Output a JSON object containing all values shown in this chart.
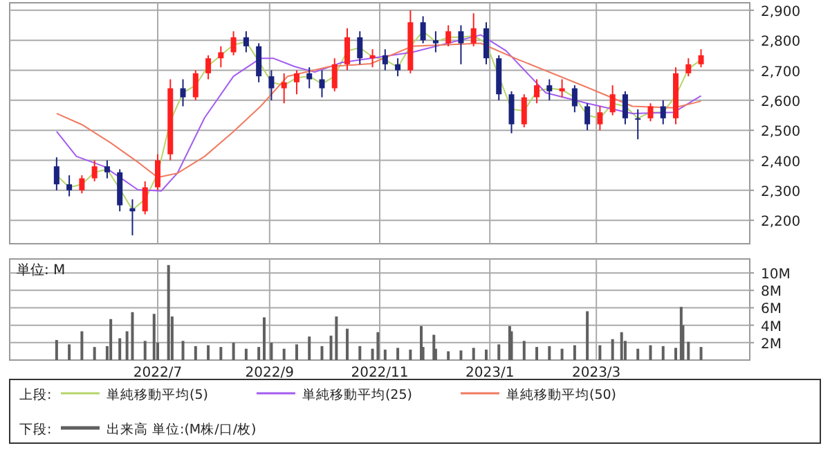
{
  "chart_data": [
    {
      "type": "candlestick",
      "legend_title": "上段:",
      "legend": "bottom",
      "grid": true,
      "tick_labels": "y",
      "xlim": [
        "2022-04-10",
        "2023-05-25"
      ],
      "ylim": [
        2122,
        2925
      ],
      "xticks": [
        {
          "value": "2022-07-01",
          "label": null
        },
        {
          "value": "2022-09-01",
          "label": null
        },
        {
          "value": "2022-11-01",
          "label": null
        },
        {
          "value": "2023-01-01",
          "label": null
        },
        {
          "value": "2023-03-01",
          "label": null
        }
      ],
      "yticks": [
        {
          "value": 2200,
          "label": "2,200"
        },
        {
          "value": 2300,
          "label": "2,300"
        },
        {
          "value": 2400,
          "label": "2,400"
        },
        {
          "value": 2500,
          "label": "2,500"
        },
        {
          "value": 2600,
          "label": "2,600"
        },
        {
          "value": 2700,
          "label": "2,700"
        },
        {
          "value": 2800,
          "label": "2,800"
        },
        {
          "value": 2900,
          "label": "2,900"
        }
      ],
      "x": [
        "2022-05-06",
        "2022-05-13",
        "2022-05-20",
        "2022-05-27",
        "2022-06-03",
        "2022-06-10",
        "2022-06-17",
        "2022-06-24",
        "2022-07-01",
        "2022-07-08",
        "2022-07-15",
        "2022-07-22",
        "2022-07-29",
        "2022-08-05",
        "2022-08-12",
        "2022-08-19",
        "2022-08-26",
        "2022-09-02",
        "2022-09-09",
        "2022-09-16",
        "2022-09-23",
        "2022-09-30",
        "2022-10-07",
        "2022-10-14",
        "2022-10-21",
        "2022-10-28",
        "2022-11-04",
        "2022-11-11",
        "2022-11-18",
        "2022-11-25",
        "2022-12-02",
        "2022-12-09",
        "2022-12-16",
        "2022-12-23",
        "2022-12-30",
        "2023-01-06",
        "2023-01-13",
        "2023-01-20",
        "2023-01-27",
        "2023-02-03",
        "2023-02-10",
        "2023-02-17",
        "2023-02-24",
        "2023-03-03",
        "2023-03-10",
        "2023-03-17",
        "2023-03-24",
        "2023-03-31",
        "2023-04-07",
        "2023-04-14",
        "2023-04-21",
        "2023-04-28"
      ],
      "ohlc": [
        [
          2380,
          2410,
          2300,
          2320
        ],
        [
          2320,
          2350,
          2280,
          2300
        ],
        [
          2300,
          2350,
          2290,
          2340
        ],
        [
          2340,
          2400,
          2330,
          2380
        ],
        [
          2380,
          2400,
          2340,
          2360
        ],
        [
          2360,
          2370,
          2230,
          2250
        ],
        [
          2240,
          2270,
          2150,
          2230
        ],
        [
          2230,
          2330,
          2220,
          2310
        ],
        [
          2310,
          2420,
          2300,
          2400
        ],
        [
          2420,
          2670,
          2400,
          2640
        ],
        [
          2640,
          2670,
          2580,
          2610
        ],
        [
          2610,
          2700,
          2600,
          2690
        ],
        [
          2690,
          2750,
          2670,
          2740
        ],
        [
          2740,
          2780,
          2710,
          2760
        ],
        [
          2760,
          2830,
          2750,
          2810
        ],
        [
          2810,
          2830,
          2760,
          2780
        ],
        [
          2780,
          2790,
          2660,
          2680
        ],
        [
          2680,
          2700,
          2600,
          2640
        ],
        [
          2640,
          2690,
          2590,
          2660
        ],
        [
          2660,
          2700,
          2620,
          2690
        ],
        [
          2690,
          2710,
          2640,
          2670
        ],
        [
          2670,
          2700,
          2610,
          2640
        ],
        [
          2640,
          2740,
          2630,
          2720
        ],
        [
          2720,
          2840,
          2700,
          2810
        ],
        [
          2810,
          2830,
          2720,
          2740
        ],
        [
          2740,
          2770,
          2710,
          2750
        ],
        [
          2750,
          2770,
          2700,
          2720
        ],
        [
          2720,
          2740,
          2680,
          2700
        ],
        [
          2700,
          2900,
          2690,
          2860
        ],
        [
          2860,
          2880,
          2790,
          2800
        ],
        [
          2800,
          2830,
          2760,
          2790
        ],
        [
          2790,
          2850,
          2780,
          2830
        ],
        [
          2830,
          2850,
          2720,
          2790
        ],
        [
          2790,
          2890,
          2780,
          2840
        ],
        [
          2840,
          2860,
          2720,
          2740
        ],
        [
          2740,
          2750,
          2600,
          2620
        ],
        [
          2620,
          2630,
          2490,
          2520
        ],
        [
          2520,
          2620,
          2510,
          2610
        ],
        [
          2610,
          2670,
          2590,
          2650
        ],
        [
          2650,
          2670,
          2600,
          2630
        ],
        [
          2630,
          2670,
          2610,
          2640
        ],
        [
          2640,
          2650,
          2560,
          2580
        ],
        [
          2580,
          2590,
          2500,
          2520
        ],
        [
          2520,
          2580,
          2500,
          2560
        ],
        [
          2560,
          2650,
          2550,
          2620
        ],
        [
          2620,
          2630,
          2520,
          2540
        ],
        [
          2540,
          2570,
          2470,
          2540
        ],
        [
          2540,
          2590,
          2530,
          2580
        ],
        [
          2580,
          2600,
          2520,
          2540
        ],
        [
          2540,
          2710,
          2520,
          2690
        ],
        [
          2690,
          2740,
          2680,
          2720
        ],
        [
          2720,
          2770,
          2710,
          2750
        ]
      ],
      "colors": [
        "#1a237e",
        "#1a237e",
        "#ff2020",
        "#ff2020",
        "#1a237e",
        "#1a237e",
        "#1a237e",
        "#ff2020",
        "#ff2020",
        "#ff2020",
        "#1a237e",
        "#ff2020",
        "#ff2020",
        "#ff2020",
        "#ff2020",
        "#1a237e",
        "#1a237e",
        "#1a237e",
        "#ff2020",
        "#ff2020",
        "#1a237e",
        "#1a237e",
        "#ff2020",
        "#ff2020",
        "#1a237e",
        "#ff2020",
        "#1a237e",
        "#1a237e",
        "#ff2020",
        "#1a237e",
        "#1a237e",
        "#ff2020",
        "#1a237e",
        "#ff2020",
        "#1a237e",
        "#1a237e",
        "#1a237e",
        "#ff2020",
        "#ff2020",
        "#1a237e",
        "#ff2020",
        "#1a237e",
        "#1a237e",
        "#ff2020",
        "#ff2020",
        "#1a237e",
        "#1a237e",
        "#ff2020",
        "#1a237e",
        "#ff2020",
        "#ff2020",
        "#ff2020"
      ],
      "series": [
        {
          "name": "単純移動平均(5)",
          "type": "line",
          "color": "#b5d66a",
          "values": [
            2350,
            2310,
            2320,
            2360,
            2370,
            2305,
            2235,
            2270,
            2355,
            2530,
            2625,
            2650,
            2715,
            2750,
            2785,
            2795,
            2730,
            2660,
            2650,
            2675,
            2680,
            2655,
            2680,
            2765,
            2775,
            2745,
            2735,
            2710,
            2780,
            2830,
            2795,
            2810,
            2810,
            2815,
            2790,
            2680,
            2570,
            2565,
            2630,
            2640,
            2635,
            2610,
            2550,
            2540,
            2590,
            2580,
            2540,
            2560,
            2560,
            2615,
            2705,
            2735
          ]
        },
        {
          "name": "単純移動平均(25)",
          "type": "line",
          "color": "#a35cf0",
          "x": [
            "2022-05-06",
            "2022-05-17",
            "2022-06-01",
            "2022-06-12",
            "2022-06-20",
            "2022-07-03",
            "2022-07-12",
            "2022-07-27",
            "2022-08-12",
            "2022-08-27",
            "2022-09-03",
            "2022-09-15",
            "2022-09-26",
            "2022-10-11",
            "2022-10-27",
            "2022-11-19",
            "2022-12-27",
            "2023-01-10",
            "2023-02-01",
            "2023-02-24",
            "2023-03-21",
            "2023-04-13",
            "2023-04-28"
          ],
          "values": [
            2496,
            2413,
            2380,
            2335,
            2302,
            2298,
            2358,
            2542,
            2680,
            2740,
            2740,
            2712,
            2694,
            2726,
            2740,
            2760,
            2818,
            2765,
            2625,
            2590,
            2556,
            2560,
            2615
          ]
        },
        {
          "name": "単純移動平均(50)",
          "type": "line",
          "color": "#f07a60",
          "x": [
            "2022-05-06",
            "2022-05-20",
            "2022-06-05",
            "2022-06-20",
            "2022-07-01",
            "2022-07-12",
            "2022-07-27",
            "2022-08-12",
            "2022-08-27",
            "2022-09-11",
            "2022-10-04",
            "2022-10-27",
            "2022-11-19",
            "2022-12-27",
            "2023-01-17",
            "2023-02-24",
            "2023-03-21",
            "2023-04-13",
            "2023-04-28"
          ],
          "values": [
            2556,
            2519,
            2458,
            2394,
            2343,
            2357,
            2413,
            2496,
            2580,
            2680,
            2712,
            2722,
            2780,
            2790,
            2735,
            2643,
            2580,
            2575,
            2597
          ]
        }
      ]
    },
    {
      "type": "bar",
      "legend_title": "下段:",
      "legend": "bottom",
      "grid": true,
      "annotations": [
        "単位: M"
      ],
      "xlim": [
        "2022-04-10",
        "2023-05-25"
      ],
      "ylim": [
        0,
        11.6
      ],
      "xticks": [
        {
          "value": "2022-07-01",
          "label": "2022/7"
        },
        {
          "value": "2022-09-01",
          "label": "2022/9"
        },
        {
          "value": "2022-11-01",
          "label": "2022/11"
        },
        {
          "value": "2023-01-01",
          "label": "2023/1"
        },
        {
          "value": "2023-03-01",
          "label": "2023/3"
        }
      ],
      "yticks": [
        {
          "value": 2,
          "label": "2M"
        },
        {
          "value": 4,
          "label": "4M"
        },
        {
          "value": 6,
          "label": "6M"
        },
        {
          "value": 8,
          "label": "8M"
        },
        {
          "value": 10,
          "label": "10M"
        }
      ],
      "x": [
        "2022-05-06",
        "2022-05-13",
        "2022-05-20",
        "2022-05-27",
        "2022-06-03",
        "2022-06-05",
        "2022-06-10",
        "2022-06-14",
        "2022-06-17",
        "2022-06-24",
        "2022-06-29",
        "2022-07-01",
        "2022-07-07",
        "2022-07-09",
        "2022-07-15",
        "2022-07-22",
        "2022-07-29",
        "2022-08-05",
        "2022-08-12",
        "2022-08-19",
        "2022-08-26",
        "2022-08-29",
        "2022-09-02",
        "2022-09-09",
        "2022-09-16",
        "2022-09-23",
        "2022-09-30",
        "2022-10-05",
        "2022-10-08",
        "2022-10-14",
        "2022-10-21",
        "2022-10-28",
        "2022-10-31",
        "2022-11-04",
        "2022-11-11",
        "2022-11-18",
        "2022-11-24",
        "2022-11-25",
        "2022-12-01",
        "2022-12-02",
        "2022-12-09",
        "2022-12-16",
        "2022-12-23",
        "2022-12-30",
        "2023-01-06",
        "2023-01-12",
        "2023-01-13",
        "2023-01-20",
        "2023-01-27",
        "2023-02-03",
        "2023-02-10",
        "2023-02-17",
        "2023-02-24",
        "2023-03-03",
        "2023-03-10",
        "2023-03-15",
        "2023-03-17",
        "2023-03-24",
        "2023-03-31",
        "2023-04-07",
        "2023-04-14",
        "2023-04-17",
        "2023-04-18",
        "2023-04-21",
        "2023-04-28"
      ],
      "series": [
        {
          "name": "出来高 単位:(M株/口/枚)",
          "color": "#606060",
          "values": [
            2.3,
            1.8,
            3.3,
            1.5,
            1.6,
            4.7,
            2.5,
            3.3,
            5.5,
            2.2,
            5.3,
            2.0,
            10.9,
            5.0,
            2.2,
            1.6,
            1.7,
            1.5,
            2.0,
            1.3,
            1.5,
            4.9,
            2.0,
            1.3,
            1.8,
            2.7,
            1.6,
            2.8,
            5.0,
            3.6,
            1.6,
            1.3,
            3.2,
            1.2,
            1.4,
            1.2,
            3.9,
            1.5,
            2.9,
            1.3,
            1.0,
            1.1,
            1.4,
            1.2,
            1.8,
            3.9,
            3.3,
            2.2,
            1.5,
            1.6,
            1.3,
            1.7,
            5.6,
            1.7,
            2.4,
            3.2,
            2.2,
            1.3,
            1.7,
            1.6,
            1.4,
            6.1,
            4.0,
            2.1,
            1.5
          ]
        }
      ]
    }
  ]
}
